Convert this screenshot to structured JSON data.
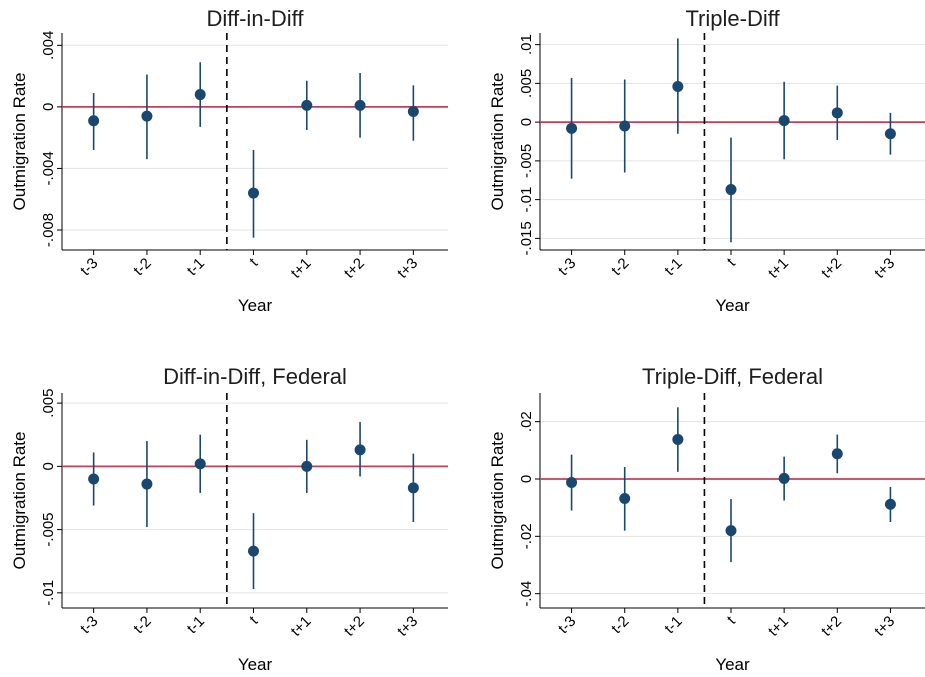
{
  "chart_data": [
    {
      "type": "scatter",
      "title": "Diff-in-Diff",
      "xlabel": "Year",
      "ylabel": "Outmigration Rate",
      "categories": [
        "t-3",
        "t-2",
        "t-1",
        "t",
        "t+1",
        "t+2",
        "t+3"
      ],
      "ylim": [
        -0.0093,
        0.0048
      ],
      "yticks": [
        0.004,
        0,
        -0.004,
        -0.008
      ],
      "ytick_labels": [
        ".004",
        "0",
        "-.004",
        "-.008"
      ],
      "reference_line": 0,
      "event_line_between": [
        "t-1",
        "t"
      ],
      "series": [
        {
          "estimates": [
            -0.0009,
            -0.0006,
            0.0008,
            -0.0056,
            0.0001,
            0.0001,
            -0.0003
          ],
          "ci_low": [
            -0.0028,
            -0.0034,
            -0.0013,
            -0.0085,
            -0.0015,
            -0.002,
            -0.0022
          ],
          "ci_high": [
            0.0009,
            0.0021,
            0.0029,
            -0.0028,
            0.0017,
            0.0022,
            0.0014
          ]
        }
      ],
      "grid": true
    },
    {
      "type": "scatter",
      "title": "Triple-Diff",
      "xlabel": "Year",
      "ylabel": "Outmigration Rate",
      "categories": [
        "t-3",
        "t-2",
        "t-1",
        "t",
        "t+1",
        "t+2",
        "t+3"
      ],
      "ylim": [
        -0.0165,
        0.0115
      ],
      "yticks": [
        0.01,
        0.005,
        0,
        -0.005,
        -0.01,
        -0.015
      ],
      "ytick_labels": [
        ".01",
        ".005",
        "0",
        "-.005",
        "-.01",
        "-.015"
      ],
      "reference_line": 0,
      "event_line_between": [
        "t-1",
        "t"
      ],
      "series": [
        {
          "estimates": [
            -0.0008,
            -0.0005,
            0.0046,
            -0.0087,
            0.0002,
            0.0012,
            -0.0015
          ],
          "ci_low": [
            -0.0073,
            -0.0065,
            -0.0015,
            -0.0155,
            -0.0048,
            -0.0023,
            -0.0042
          ],
          "ci_high": [
            0.0057,
            0.0055,
            0.0108,
            -0.002,
            0.0052,
            0.0047,
            0.0012
          ]
        }
      ],
      "grid": true
    },
    {
      "type": "scatter",
      "title": "Diff-in-Diff, Federal",
      "xlabel": "Year",
      "ylabel": "Outmigration Rate",
      "categories": [
        "t-3",
        "t-2",
        "t-1",
        "t",
        "t+1",
        "t+2",
        "t+3"
      ],
      "ylim": [
        -0.0112,
        0.0058
      ],
      "yticks": [
        0.005,
        0,
        -0.005,
        -0.01
      ],
      "ytick_labels": [
        ".005",
        "0",
        "-.005",
        "-.01"
      ],
      "reference_line": 0,
      "event_line_between": [
        "t-1",
        "t"
      ],
      "series": [
        {
          "estimates": [
            -0.001,
            -0.0014,
            0.0002,
            -0.0067,
            0.0,
            0.0013,
            -0.0017
          ],
          "ci_low": [
            -0.0031,
            -0.0048,
            -0.0021,
            -0.0097,
            -0.0021,
            -0.0008,
            -0.0044
          ],
          "ci_high": [
            0.0011,
            0.002,
            0.0025,
            -0.0037,
            0.0021,
            0.0035,
            0.001
          ]
        }
      ],
      "grid": true
    },
    {
      "type": "scatter",
      "title": "Triple-Diff, Federal",
      "xlabel": "Year",
      "ylabel": "Outmigration Rate",
      "categories": [
        "t-3",
        "t-2",
        "t-1",
        "t",
        "t+1",
        "t+2",
        "t+3"
      ],
      "ylim": [
        -0.045,
        0.03
      ],
      "yticks": [
        0.02,
        0,
        -0.02,
        -0.04
      ],
      "ytick_labels": [
        ".02",
        "0",
        "-.02",
        "-.04"
      ],
      "reference_line": 0,
      "event_line_between": [
        "t-1",
        "t"
      ],
      "series": [
        {
          "estimates": [
            -0.0012,
            -0.0068,
            0.0138,
            -0.018,
            0.0002,
            0.0088,
            -0.0088
          ],
          "ci_low": [
            -0.011,
            -0.018,
            0.0025,
            -0.029,
            -0.0075,
            0.002,
            -0.015
          ],
          "ci_high": [
            0.0085,
            0.0042,
            0.025,
            -0.007,
            0.0078,
            0.0155,
            -0.0028
          ]
        }
      ],
      "grid": true
    }
  ],
  "colors": {
    "point": "#1a476f",
    "ci": "#1a476f",
    "zero_line": "#c0405a",
    "grid": "#e3e3e3",
    "axis": "#000000",
    "event_line": "#000000"
  }
}
